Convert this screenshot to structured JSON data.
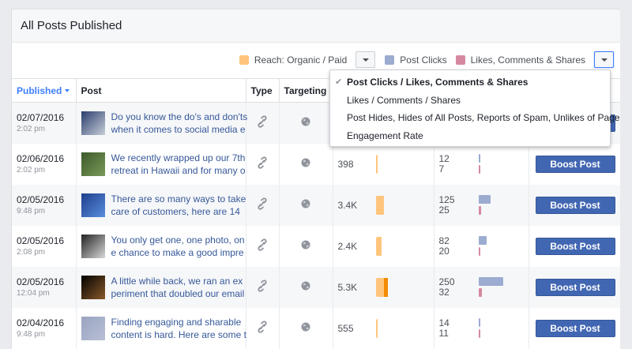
{
  "panel": {
    "title": "All Posts Published"
  },
  "legend": {
    "reach_label": "Reach: Organic / Paid",
    "reach_color": "#ffc57d",
    "clicks_label": "Post Clicks",
    "clicks_color": "#9cabd0",
    "likes_label": "Likes, Comments & Shares",
    "likes_color": "#d589a0"
  },
  "table": {
    "headers": {
      "published": "Published",
      "post": "Post",
      "type": "Type",
      "targeting": "Targeting"
    },
    "rows": [
      {
        "date": "02/07/2016",
        "time": "2:02 pm",
        "post_line1": "Do you know the do's and don'ts",
        "post_line2": "when it comes to social media e",
        "reach": "",
        "reach_org_w": 0,
        "reach_paid_w": 0,
        "clicks": "",
        "likes": "",
        "clicks_w": 0,
        "likes_w": 0,
        "boost": "Boost Post",
        "thumb_colors": [
          "#2a3d6e",
          "#c7ced8"
        ]
      },
      {
        "date": "02/06/2016",
        "time": "2:02 pm",
        "post_line1": "We recently wrapped up our 7th",
        "post_line2": "retreat in Hawaii and for many o",
        "reach": "398",
        "reach_org_w": 2,
        "reach_paid_w": 0,
        "clicks": "12",
        "likes": "7",
        "clicks_w": 2,
        "likes_w": 2,
        "boost": "Boost Post",
        "thumb_colors": [
          "#3c5a2a",
          "#7a9a5a"
        ]
      },
      {
        "date": "02/05/2016",
        "time": "9:48 pm",
        "post_line1": "There are so many ways to take",
        "post_line2": "care of customers, here are 14",
        "reach": "3.4K",
        "reach_org_w": 10,
        "reach_paid_w": 0,
        "clicks": "125",
        "likes": "25",
        "clicks_w": 15,
        "likes_w": 3,
        "boost": "Boost Post",
        "thumb_colors": [
          "#1e3f8a",
          "#5a8de0"
        ]
      },
      {
        "date": "02/05/2016",
        "time": "2:08 pm",
        "post_line1": "You only get one, one photo, on",
        "post_line2": "e chance to make a good impre",
        "reach": "2.4K",
        "reach_org_w": 7,
        "reach_paid_w": 0,
        "clicks": "82",
        "likes": "20",
        "clicks_w": 10,
        "likes_w": 2,
        "boost": "Boost Post",
        "thumb_colors": [
          "#222222",
          "#d8d8d8"
        ]
      },
      {
        "date": "02/05/2016",
        "time": "12:04 pm",
        "post_line1": "A little while back, we ran an ex",
        "post_line2": "periment that doubled our email",
        "reach": "5.3K",
        "reach_org_w": 10,
        "reach_paid_w": 5,
        "clicks": "250",
        "likes": "32",
        "clicks_w": 31,
        "likes_w": 4,
        "boost": "Boost Post",
        "thumb_colors": [
          "#000000",
          "#8a5a2a"
        ]
      },
      {
        "date": "02/04/2016",
        "time": "9:48 pm",
        "post_line1": "Finding engaging and sharable",
        "post_line2": "content is hard. Here are some t",
        "reach": "555",
        "reach_org_w": 2,
        "reach_paid_w": 0,
        "clicks": "14",
        "likes": "11",
        "clicks_w": 2,
        "likes_w": 2,
        "boost": "Boost Post",
        "thumb_colors": [
          "#9aa4c0",
          "#b8c0d6"
        ]
      }
    ]
  },
  "dropdown_menu": {
    "items": [
      {
        "label": "Post Clicks / Likes, Comments & Shares",
        "checked": true
      },
      {
        "label": "Likes / Comments / Shares",
        "checked": false
      },
      {
        "label": "Post Hides, Hides of All Posts, Reports of Spam, Unlikes of Page",
        "checked": false
      },
      {
        "label": "Engagement Rate",
        "checked": false
      }
    ],
    "check_glyph": "✔"
  },
  "icons": {
    "type": "link-icon",
    "targeting": "globe-icon"
  }
}
